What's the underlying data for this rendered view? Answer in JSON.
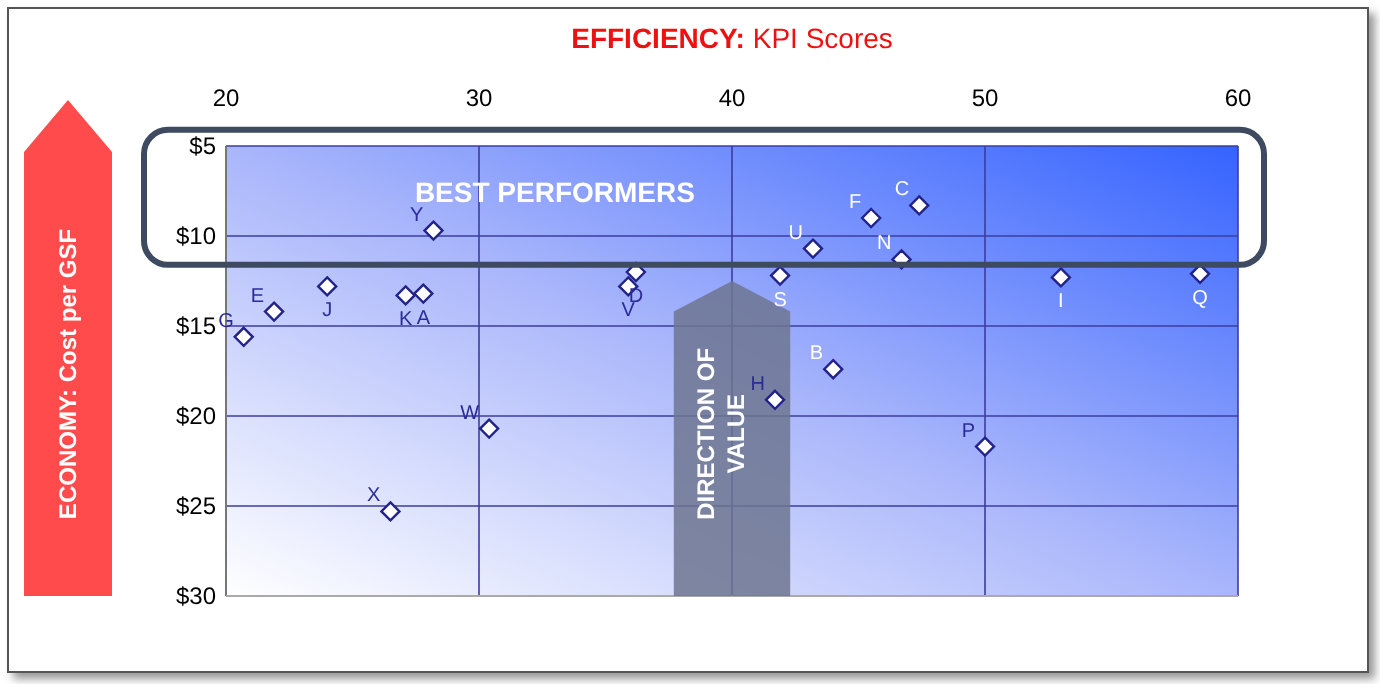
{
  "chart_data": {
    "type": "scatter",
    "title": "EFFICIENCY: KPI Scores",
    "ylabel": "ECONOMY: Cost per GSF",
    "x": [
      28.2,
      24.0,
      27.1,
      27.8,
      21.9,
      20.7,
      36.2,
      35.9,
      30.4,
      26.5,
      43.2,
      45.5,
      47.4,
      46.7,
      41.9,
      53.0,
      58.5,
      44.0,
      41.7,
      50.0
    ],
    "values": [
      9.7,
      12.8,
      13.3,
      13.2,
      14.2,
      15.6,
      12.0,
      12.8,
      20.7,
      25.3,
      10.7,
      9.0,
      8.3,
      11.3,
      12.2,
      12.3,
      12.1,
      17.4,
      19.1,
      21.7
    ],
    "color": "#22228a",
    "marker": "diamond",
    "grid": true,
    "legend": false,
    "xlim": [
      20,
      60
    ],
    "xticks": [
      20,
      30,
      40,
      50,
      60
    ],
    "ylim": [
      30,
      5
    ],
    "yticks": [
      {
        "value": 5,
        "label": "$5"
      },
      {
        "value": 10,
        "label": "$10"
      },
      {
        "value": 15,
        "label": "$15"
      },
      {
        "value": 20,
        "label": "$20"
      },
      {
        "value": 25,
        "label": "$25"
      },
      {
        "value": 30,
        "label": "$30"
      }
    ],
    "annotations": [
      {
        "text": "Y",
        "x": 28.2,
        "y": 9.7
      },
      {
        "text": "J",
        "x": 24.0,
        "y": 12.8
      },
      {
        "text": "K",
        "x": 27.1,
        "y": 13.3
      },
      {
        "text": "A",
        "x": 27.8,
        "y": 13.2
      },
      {
        "text": "E",
        "x": 21.9,
        "y": 14.2
      },
      {
        "text": "G",
        "x": 20.7,
        "y": 15.6
      },
      {
        "text": "D",
        "x": 36.2,
        "y": 12.0
      },
      {
        "text": "V",
        "x": 35.9,
        "y": 12.8
      },
      {
        "text": "W",
        "x": 30.4,
        "y": 20.7
      },
      {
        "text": "X",
        "x": 26.5,
        "y": 25.3
      },
      {
        "text": "U",
        "x": 43.2,
        "y": 10.7
      },
      {
        "text": "F",
        "x": 45.5,
        "y": 9.0
      },
      {
        "text": "C",
        "x": 47.4,
        "y": 8.3
      },
      {
        "text": "N",
        "x": 46.7,
        "y": 11.3
      },
      {
        "text": "S",
        "x": 41.9,
        "y": 12.2
      },
      {
        "text": "I",
        "x": 53.0,
        "y": 12.3
      },
      {
        "text": "Q",
        "x": 58.5,
        "y": 12.1
      },
      {
        "text": "B",
        "x": 44.0,
        "y": 17.4
      },
      {
        "text": "H",
        "x": 41.7,
        "y": 19.1
      },
      {
        "text": "P",
        "x": 50.0,
        "y": 21.7
      },
      "BEST PERFORMERS",
      "DIRECTION OF VALUE"
    ]
  }
}
